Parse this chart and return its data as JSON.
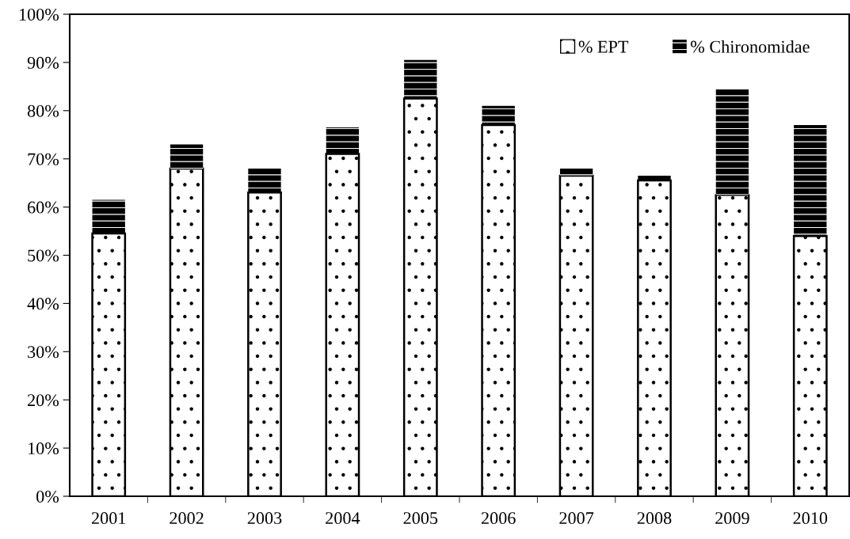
{
  "chart_data": {
    "type": "bar",
    "stacked": true,
    "categories": [
      "2001",
      "2002",
      "2003",
      "2004",
      "2005",
      "2006",
      "2007",
      "2008",
      "2009",
      "2010"
    ],
    "series": [
      {
        "name": "% EPT",
        "color": "#000000",
        "values": [
          54.5,
          68,
          63,
          71,
          82.5,
          77,
          66.5,
          65.5,
          62.5,
          54
        ]
      },
      {
        "name": "% Chironomidae",
        "color": "#000000",
        "values": [
          7,
          5,
          5,
          5.5,
          8,
          4,
          1.5,
          1,
          22,
          23
        ]
      }
    ],
    "ylim": [
      0,
      100
    ],
    "yticks": [
      {
        "value": 0,
        "label": "0%"
      },
      {
        "value": 10,
        "label": "10%"
      },
      {
        "value": 20,
        "label": "20%"
      },
      {
        "value": 30,
        "label": "30%"
      },
      {
        "value": 40,
        "label": "40%"
      },
      {
        "value": 50,
        "label": "50%"
      },
      {
        "value": 60,
        "label": "60%"
      },
      {
        "value": 70,
        "label": "70%"
      },
      {
        "value": 80,
        "label": "80%"
      },
      {
        "value": 90,
        "label": "90%"
      },
      {
        "value": 100,
        "label": "100%"
      }
    ],
    "grid": false,
    "legend": "top right"
  }
}
